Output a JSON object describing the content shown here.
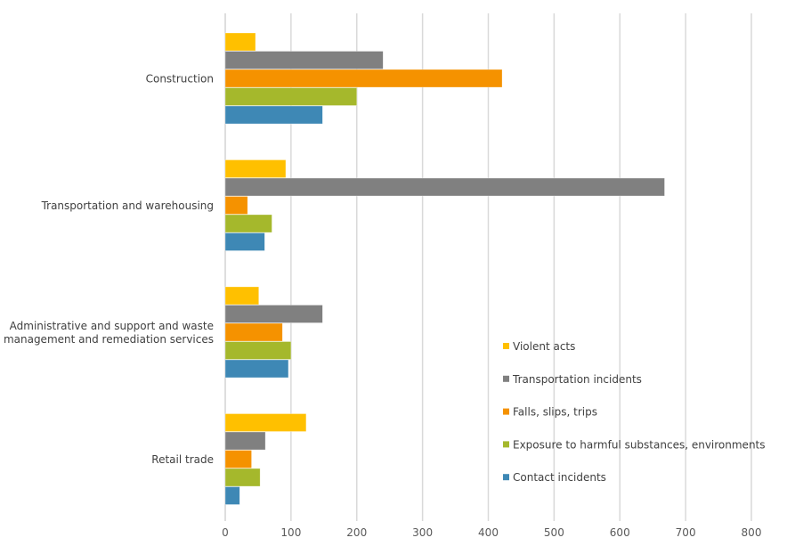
{
  "chart_data": {
    "type": "bar",
    "orientation": "horizontal",
    "title": "",
    "xlabel": "",
    "ylabel": "",
    "xlim": [
      0,
      800
    ],
    "xticks": [
      0,
      100,
      200,
      300,
      400,
      500,
      600,
      700,
      800
    ],
    "grid": true,
    "legend_position": "bottom-right",
    "categories": [
      [
        "Construction"
      ],
      [
        "Transportation and warehousing"
      ],
      [
        "Administrative and support and waste",
        "management and remediation services"
      ],
      [
        "Retail trade"
      ]
    ],
    "series": [
      {
        "name": "Violent acts",
        "color": "#FFC000",
        "values": [
          46,
          92,
          51,
          123
        ]
      },
      {
        "name": "Transportation incidents",
        "color": "#808080",
        "values": [
          240,
          668,
          148,
          61
        ]
      },
      {
        "name": "Falls, slips, trips",
        "color": "#F59200",
        "values": [
          421,
          34,
          87,
          40
        ]
      },
      {
        "name": "Exposure to harmful substances, environments",
        "color": "#A5B82C",
        "values": [
          200,
          71,
          100,
          53
        ]
      },
      {
        "name": "Contact incidents",
        "color": "#3E88B5",
        "values": [
          148,
          60,
          96,
          22
        ]
      }
    ]
  }
}
